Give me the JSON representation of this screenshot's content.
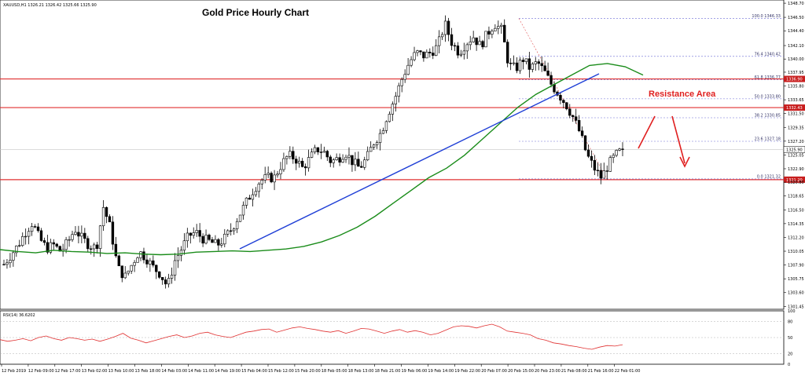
{
  "header": {
    "symbol_info": "XAUUSD,H1  1326.21 1326.42 1325.66 1325.90",
    "title": "Gold Price Hourly Chart"
  },
  "annotations": {
    "resistance_label": "Resistance Area"
  },
  "colors": {
    "candle": "#000000",
    "ma": "#1a8c1a",
    "trendline": "#1f3fd6",
    "horizontal": "#e03030",
    "fib": "#6b6bd6",
    "fib_diag": "#e05050",
    "arrow": "#e02020",
    "rsi": "#e03030",
    "resistance_text": "#e02020",
    "price_tag": "#c81e1e"
  },
  "rsi": {
    "label": "RSI(14) 36.6202",
    "levels": [
      "100",
      "80",
      "50",
      "20",
      "0"
    ]
  },
  "chart_data": {
    "type": "candlestick",
    "title": "Gold Price Hourly Chart",
    "ylim": [
      1301.0,
      1349.2
    ],
    "y_ticks": [
      "1348.70",
      "1346.50",
      "1344.40",
      "1342.10",
      "1340.00",
      "1337.95",
      "1335.80",
      "1333.65",
      "1331.50",
      "1329.35",
      "1327.20",
      "1325.05",
      "1322.90",
      "1320.80",
      "1318.65",
      "1316.50",
      "1314.35",
      "1312.20",
      "1310.05",
      "1307.90",
      "1305.75",
      "1303.60",
      "1301.45"
    ],
    "x_labels": [
      "12 Feb 2019",
      "12 Feb 09:00",
      "12 Feb 17:00",
      "13 Feb 02:00",
      "13 Feb 10:00",
      "13 Feb 18:00",
      "14 Feb 03:00",
      "14 Feb 11:00",
      "14 Feb 19:00",
      "15 Feb 04:00",
      "15 Feb 12:00",
      "15 Feb 20:00",
      "18 Feb 05:00",
      "18 Feb 13:00",
      "18 Feb 21:00",
      "19 Feb 06:00",
      "19 Feb 14:00",
      "19 Feb 22:00",
      "20 Feb 07:00",
      "20 Feb 15:00",
      "20 Feb 23:00",
      "21 Feb 08:00",
      "21 Feb 16:00",
      "22 Feb 01:00"
    ],
    "close_path": [
      1308.0,
      1309.5,
      1311.0,
      1313.0,
      1314.5,
      1312.0,
      1310.5,
      1311.0,
      1310.0,
      1311.5,
      1313.5,
      1312.0,
      1311.0,
      1310.5,
      1317.0,
      1313.5,
      1307.5,
      1306.0,
      1308.0,
      1310.0,
      1309.0,
      1307.5,
      1306.5,
      1304.5,
      1308.5,
      1310.5,
      1312.5,
      1313.0,
      1312.0,
      1311.5,
      1311.0,
      1312.0,
      1313.5,
      1315.5,
      1317.5,
      1319.5,
      1321.0,
      1321.5,
      1321.5,
      1323.5,
      1325.0,
      1324.5,
      1323.0,
      1324.5,
      1326.0,
      1325.5,
      1324.0,
      1324.5,
      1325.5,
      1324.0,
      1323.0,
      1324.5,
      1327.0,
      1328.5,
      1331.5,
      1334.0,
      1337.0,
      1339.5,
      1341.0,
      1340.5,
      1341.0,
      1342.0,
      1345.5,
      1342.5,
      1341.0,
      1342.5,
      1343.5,
      1342.0,
      1344.0,
      1345.5,
      1344.5,
      1339.0,
      1338.5,
      1340.0,
      1338.5,
      1339.5,
      1338.0,
      1336.0,
      1334.5,
      1333.0,
      1331.0,
      1328.5,
      1325.0,
      1323.0,
      1321.5,
      1323.5,
      1325.0,
      1325.9
    ],
    "series": [
      {
        "name": "",
        "kind": "ma",
        "values": [
          1310.3,
          1310.0,
          1309.8,
          1310.2,
          1310.0,
          1309.9,
          1309.7,
          1309.8,
          1309.6,
          1309.5,
          1309.6,
          1309.9,
          1310.0,
          1310.1,
          1310.0,
          1310.2,
          1310.4,
          1310.8,
          1311.5,
          1312.5,
          1313.8,
          1315.5,
          1317.5,
          1319.5,
          1321.5,
          1323.0,
          1325.0,
          1327.5,
          1330.0,
          1332.5,
          1334.5,
          1336.0,
          1337.5,
          1339.0,
          1339.3,
          1338.8,
          1337.5
        ]
      },
      {
        "name": "RSI(14)",
        "kind": "rsi",
        "values": [
          46,
          43,
          45,
          48,
          44,
          50,
          53,
          48,
          45,
          50,
          48,
          45,
          47,
          43,
          47,
          52,
          58,
          49,
          45,
          40,
          44,
          48,
          52,
          55,
          50,
          53,
          58,
          60,
          55,
          52,
          50,
          55,
          60,
          62,
          65,
          66,
          60,
          64,
          68,
          70,
          67,
          65,
          62,
          60,
          63,
          58,
          62,
          67,
          66,
          62,
          58,
          62,
          65,
          60,
          63,
          60,
          55,
          58,
          64,
          70,
          72,
          71,
          68,
          72,
          75,
          70,
          62,
          60,
          58,
          55,
          48,
          45,
          40,
          38,
          35,
          33,
          30,
          28,
          32,
          35,
          34,
          36.62
        ]
      }
    ],
    "fibonacci": [
      {
        "label": "100.0 1346.33",
        "price": 1346.33
      },
      {
        "label": "76.4 1340.42",
        "price": 1340.42
      },
      {
        "label": "61.8 1336.77",
        "price": 1336.77
      },
      {
        "label": "50.0 1333.80",
        "price": 1333.8
      },
      {
        "label": "38.2 1330.85",
        "price": 1330.85
      },
      {
        "label": "23.6 1327.18",
        "price": 1327.18
      },
      {
        "label": "0.0 1321.32",
        "price": 1321.32
      }
    ],
    "horizontal_lines": [
      {
        "price": 1336.9,
        "tag": "1336.90"
      },
      {
        "price": 1332.43,
        "tag": "1332.43"
      },
      {
        "price": 1321.2,
        "tag": "1321.20"
      }
    ],
    "current_price": {
      "price": 1325.9,
      "tag": "1325.90"
    }
  }
}
